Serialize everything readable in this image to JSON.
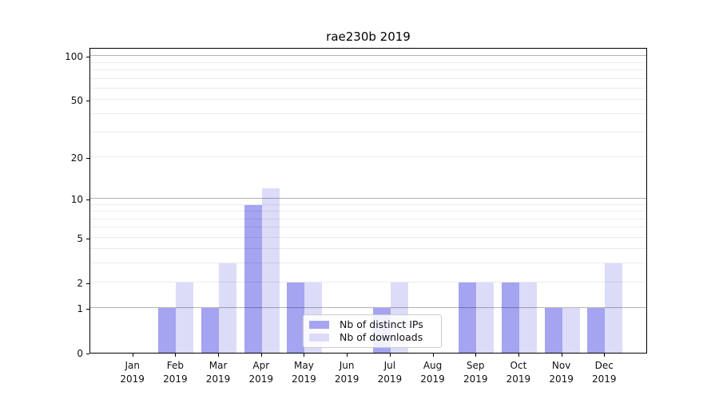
{
  "chart_data": {
    "type": "bar",
    "title": "rae230b 2019",
    "categories": [
      "Jan",
      "Feb",
      "Mar",
      "Apr",
      "May",
      "Jun",
      "Jul",
      "Aug",
      "Sep",
      "Oct",
      "Nov",
      "Dec"
    ],
    "category_year": "2019",
    "series": [
      {
        "name": "Nb of distinct IPs",
        "color": "#a4a4f1",
        "values": [
          0,
          1,
          1,
          9,
          2,
          0,
          1,
          0,
          2,
          2,
          1,
          1
        ]
      },
      {
        "name": "Nb of downloads",
        "color": "#dcdcf9",
        "values": [
          0,
          2,
          3,
          12,
          2,
          0,
          2,
          0,
          2,
          2,
          1,
          3
        ]
      }
    ],
    "y_axis": {
      "scale": "log1p",
      "tick_labels": [
        0,
        1,
        2,
        5,
        10,
        20,
        50,
        100
      ],
      "major_gridlines": [
        1,
        10,
        100
      ],
      "minor_gridlines": [
        2,
        3,
        4,
        5,
        6,
        7,
        8,
        9,
        20,
        30,
        40,
        50,
        60,
        70,
        80,
        90
      ],
      "ylim": [
        0,
        114
      ]
    },
    "grid": "on",
    "legend_position": "inside-lower-center"
  },
  "colors": {
    "series_dark": "#a4a4f1",
    "series_light": "#dcdcf9",
    "spine": "#000000",
    "text": "#111111",
    "legend_border": "#cccccc"
  }
}
